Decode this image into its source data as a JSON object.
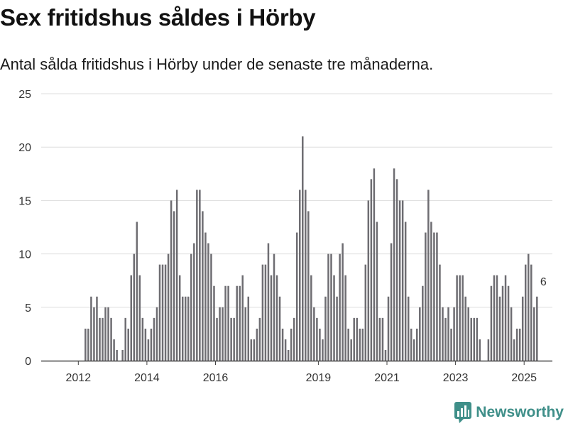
{
  "title": "Sex fritidshus såldes i Hörby",
  "subtitle": "Antal sålda fritidshus i Hörby under de senaste tre månaderna.",
  "brand": {
    "name": "Newsworthy",
    "color": "#3f8f89",
    "icon": "newsworthy-chart-logo-icon"
  },
  "colors": {
    "bar": "#6e6d72",
    "highlight": "#1e9e96",
    "grid": "#dddddd",
    "axis": "#444444"
  },
  "chart_data": {
    "type": "bar",
    "ylim": [
      0,
      25
    ],
    "yticks": [
      "0",
      "5",
      "10",
      "15",
      "20",
      "25"
    ],
    "xticks": [
      "2012",
      "2014",
      "2016",
      "2019",
      "2021",
      "2023",
      "2025"
    ],
    "xtick_years": [
      2012,
      2014,
      2016,
      2019,
      2021,
      2023,
      2025
    ],
    "x_start": "2011-01",
    "x_end": "2025-12",
    "first_bar": "2012-03",
    "values": [
      3,
      3,
      6,
      5,
      6,
      4,
      4,
      5,
      5,
      4,
      2,
      1,
      0,
      1,
      4,
      3,
      8,
      10,
      13,
      8,
      4,
      3,
      2,
      3,
      4,
      5,
      9,
      9,
      9,
      10,
      15,
      14,
      16,
      8,
      6,
      6,
      6,
      10,
      11,
      16,
      16,
      14,
      12,
      11,
      10,
      7,
      4,
      5,
      5,
      7,
      7,
      4,
      4,
      7,
      7,
      8,
      5,
      6,
      2,
      2,
      3,
      4,
      9,
      9,
      11,
      8,
      10,
      8,
      6,
      3,
      2,
      1,
      3,
      4,
      12,
      16,
      21,
      16,
      14,
      8,
      5,
      4,
      3,
      2,
      6,
      10,
      10,
      8,
      6,
      10,
      11,
      8,
      3,
      2,
      4,
      4,
      3,
      3,
      9,
      15,
      17,
      18,
      13,
      4,
      4,
      1,
      6,
      11,
      18,
      17,
      15,
      15,
      13,
      6,
      3,
      2,
      3,
      5,
      7,
      12,
      16,
      13,
      12,
      12,
      9,
      5,
      4,
      5,
      3,
      5,
      8,
      8,
      8,
      6,
      5,
      4,
      4,
      4,
      2,
      0,
      0,
      2,
      7,
      8,
      8,
      6,
      7,
      8,
      7,
      5,
      2,
      3,
      3,
      6,
      9,
      10,
      9,
      5,
      6
    ],
    "highlight": {
      "date": "2025-07",
      "value": 6,
      "label": "6"
    }
  }
}
